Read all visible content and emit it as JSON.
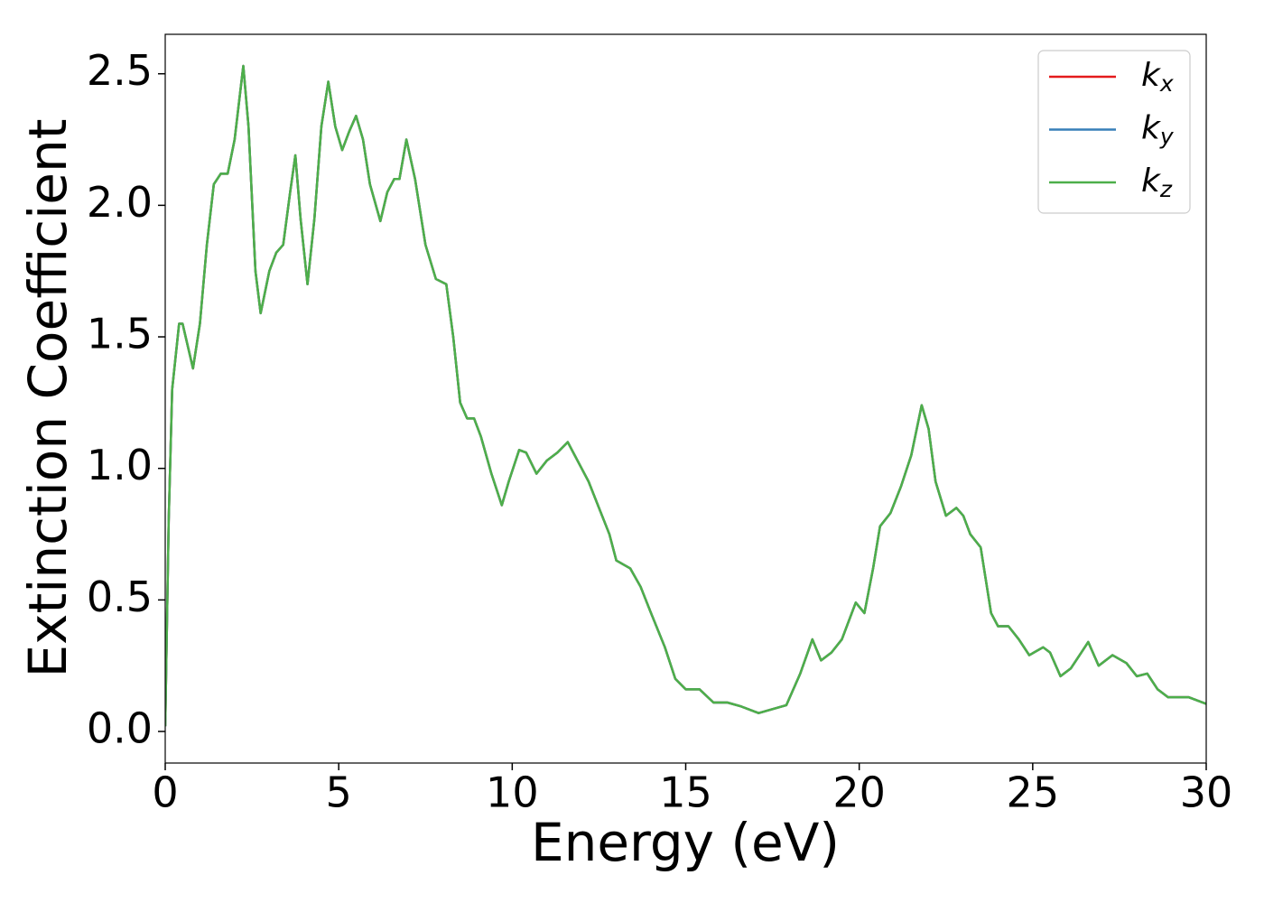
{
  "chart_data": {
    "type": "line",
    "xlabel": "Energy (eV)",
    "ylabel": "Extinction Coefficient",
    "x": [
      0,
      0.1,
      0.2,
      0.4,
      0.5,
      0.8,
      1.0,
      1.2,
      1.4,
      1.6,
      1.8,
      2.0,
      2.25,
      2.4,
      2.6,
      2.75,
      3.0,
      3.2,
      3.4,
      3.6,
      3.75,
      3.9,
      4.1,
      4.3,
      4.5,
      4.7,
      4.9,
      5.1,
      5.3,
      5.5,
      5.7,
      5.9,
      6.2,
      6.4,
      6.6,
      6.75,
      6.95,
      7.2,
      7.5,
      7.8,
      8.1,
      8.3,
      8.5,
      8.7,
      8.9,
      9.1,
      9.4,
      9.7,
      9.9,
      10.2,
      10.4,
      10.7,
      11.0,
      11.3,
      11.6,
      11.8,
      12.0,
      12.2,
      12.5,
      12.8,
      13.0,
      13.4,
      13.7,
      14.0,
      14.4,
      14.7,
      15.0,
      15.4,
      15.8,
      16.2,
      16.6,
      17.1,
      17.5,
      17.9,
      18.3,
      18.65,
      18.9,
      19.2,
      19.5,
      19.9,
      20.15,
      20.4,
      20.6,
      20.9,
      21.2,
      21.5,
      21.8,
      22.0,
      22.2,
      22.5,
      22.8,
      23.0,
      23.2,
      23.5,
      23.8,
      24.0,
      24.3,
      24.6,
      24.9,
      25.3,
      25.5,
      25.8,
      26.1,
      26.4,
      26.6,
      26.9,
      27.3,
      27.7,
      28.0,
      28.3,
      28.6,
      28.9,
      29.5,
      30.0
    ],
    "series": [
      {
        "name": "kx",
        "color": "#e41a1c",
        "values": [
          0.02,
          0.8,
          1.3,
          1.55,
          1.55,
          1.38,
          1.55,
          1.85,
          2.08,
          2.12,
          2.12,
          2.25,
          2.53,
          2.3,
          1.75,
          1.59,
          1.75,
          1.82,
          1.85,
          2.05,
          2.19,
          1.95,
          1.7,
          1.95,
          2.3,
          2.47,
          2.3,
          2.21,
          2.28,
          2.34,
          2.25,
          2.08,
          1.94,
          2.05,
          2.1,
          2.1,
          2.25,
          2.1,
          1.85,
          1.72,
          1.7,
          1.5,
          1.25,
          1.19,
          1.19,
          1.12,
          0.98,
          0.86,
          0.95,
          1.07,
          1.06,
          0.98,
          1.03,
          1.06,
          1.1,
          1.05,
          1.0,
          0.95,
          0.85,
          0.75,
          0.65,
          0.62,
          0.55,
          0.45,
          0.32,
          0.2,
          0.16,
          0.16,
          0.11,
          0.11,
          0.095,
          0.07,
          0.085,
          0.1,
          0.22,
          0.35,
          0.27,
          0.3,
          0.35,
          0.49,
          0.45,
          0.62,
          0.78,
          0.83,
          0.93,
          1.05,
          1.24,
          1.15,
          0.95,
          0.82,
          0.85,
          0.82,
          0.75,
          0.7,
          0.45,
          0.4,
          0.4,
          0.35,
          0.29,
          0.32,
          0.3,
          0.21,
          0.24,
          0.3,
          0.34,
          0.25,
          0.29,
          0.26,
          0.21,
          0.22,
          0.16,
          0.13,
          0.13,
          0.105
        ]
      },
      {
        "name": "ky",
        "color": "#377eb8",
        "values": [
          0.02,
          0.8,
          1.3,
          1.55,
          1.55,
          1.38,
          1.55,
          1.85,
          2.08,
          2.12,
          2.12,
          2.25,
          2.53,
          2.3,
          1.75,
          1.59,
          1.75,
          1.82,
          1.85,
          2.05,
          2.19,
          1.95,
          1.7,
          1.95,
          2.3,
          2.47,
          2.3,
          2.21,
          2.28,
          2.34,
          2.25,
          2.08,
          1.94,
          2.05,
          2.1,
          2.1,
          2.25,
          2.1,
          1.85,
          1.72,
          1.7,
          1.5,
          1.25,
          1.19,
          1.19,
          1.12,
          0.98,
          0.86,
          0.95,
          1.07,
          1.06,
          0.98,
          1.03,
          1.06,
          1.1,
          1.05,
          1.0,
          0.95,
          0.85,
          0.75,
          0.65,
          0.62,
          0.55,
          0.45,
          0.32,
          0.2,
          0.16,
          0.16,
          0.11,
          0.11,
          0.095,
          0.07,
          0.085,
          0.1,
          0.22,
          0.35,
          0.27,
          0.3,
          0.35,
          0.49,
          0.45,
          0.62,
          0.78,
          0.83,
          0.93,
          1.05,
          1.24,
          1.15,
          0.95,
          0.82,
          0.85,
          0.82,
          0.75,
          0.7,
          0.45,
          0.4,
          0.4,
          0.35,
          0.29,
          0.32,
          0.3,
          0.21,
          0.24,
          0.3,
          0.34,
          0.25,
          0.29,
          0.26,
          0.21,
          0.22,
          0.16,
          0.13,
          0.13,
          0.105
        ]
      },
      {
        "name": "kz",
        "color": "#4daf4a",
        "values": [
          0.02,
          0.8,
          1.3,
          1.55,
          1.55,
          1.38,
          1.55,
          1.85,
          2.08,
          2.12,
          2.12,
          2.25,
          2.53,
          2.3,
          1.75,
          1.59,
          1.75,
          1.82,
          1.85,
          2.05,
          2.19,
          1.95,
          1.7,
          1.95,
          2.3,
          2.47,
          2.3,
          2.21,
          2.28,
          2.34,
          2.25,
          2.08,
          1.94,
          2.05,
          2.1,
          2.1,
          2.25,
          2.1,
          1.85,
          1.72,
          1.7,
          1.5,
          1.25,
          1.19,
          1.19,
          1.12,
          0.98,
          0.86,
          0.95,
          1.07,
          1.06,
          0.98,
          1.03,
          1.06,
          1.1,
          1.05,
          1.0,
          0.95,
          0.85,
          0.75,
          0.65,
          0.62,
          0.55,
          0.45,
          0.32,
          0.2,
          0.16,
          0.16,
          0.11,
          0.11,
          0.095,
          0.07,
          0.085,
          0.1,
          0.22,
          0.35,
          0.27,
          0.3,
          0.35,
          0.49,
          0.45,
          0.62,
          0.78,
          0.83,
          0.93,
          1.05,
          1.24,
          1.15,
          0.95,
          0.82,
          0.85,
          0.82,
          0.75,
          0.7,
          0.45,
          0.4,
          0.4,
          0.35,
          0.29,
          0.32,
          0.3,
          0.21,
          0.24,
          0.3,
          0.34,
          0.25,
          0.29,
          0.26,
          0.21,
          0.22,
          0.16,
          0.13,
          0.13,
          0.105
        ]
      }
    ],
    "xlim": [
      0,
      30
    ],
    "xticks": [
      0,
      5,
      10,
      15,
      20,
      25,
      30
    ],
    "ylim": [
      -0.12,
      2.65
    ],
    "yticks": [
      {
        "value": 0,
        "label": "0.0"
      },
      0.5,
      {
        "value": 1,
        "label": "1.0"
      },
      1.5,
      {
        "value": 2,
        "label": "2.0"
      },
      2.5
    ],
    "grid": false,
    "legend": "upper right"
  }
}
